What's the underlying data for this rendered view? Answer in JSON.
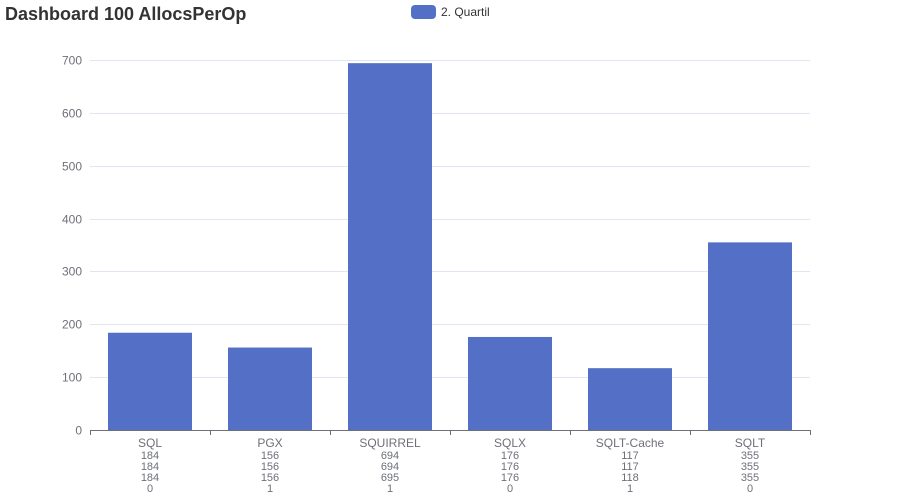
{
  "title": "Dashboard 100 AllocsPerOp",
  "legend": {
    "label": "2. Quartil",
    "color": "#5470c6"
  },
  "colors": {
    "bar": "#5470c6",
    "grid": "#e0e6f1",
    "axis": "#6e7079",
    "text": "#6e7079"
  },
  "chart_data": {
    "type": "bar",
    "title": "Dashboard 100 AllocsPerOp",
    "categories": [
      "SQL",
      "PGX",
      "SQUIRREL",
      "SQLX",
      "SQLT-Cache",
      "SQLT"
    ],
    "category_sublabels": [
      [
        "184",
        "184",
        "184",
        "0"
      ],
      [
        "156",
        "156",
        "156",
        "1"
      ],
      [
        "694",
        "694",
        "695",
        "1"
      ],
      [
        "176",
        "176",
        "176",
        "0"
      ],
      [
        "117",
        "117",
        "118",
        "1"
      ],
      [
        "355",
        "355",
        "355",
        "0"
      ]
    ],
    "series": [
      {
        "name": "2. Quartil",
        "values": [
          184,
          156,
          694,
          176,
          117,
          355
        ]
      }
    ],
    "ylim": [
      0,
      700
    ],
    "yticks": [
      0,
      100,
      200,
      300,
      400,
      500,
      600,
      700
    ],
    "xlabel": "",
    "ylabel": "",
    "grid": true,
    "legend_position": "top-center"
  }
}
